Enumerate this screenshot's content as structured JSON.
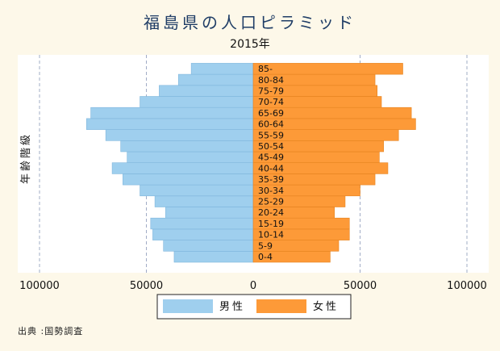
{
  "title": "福島県の人口ピラミッド",
  "subtitle": "2015年",
  "source": "出典 :国勢調査",
  "chart_data": {
    "type": "bar",
    "orientation": "horizontal",
    "title": "福島県の人口ピラミッド",
    "subtitle": "2015年",
    "ylabel": "年齢階級",
    "xlim": [
      -100000,
      100000
    ],
    "x_ticks": [
      -100000,
      -50000,
      0,
      50000,
      100000
    ],
    "x_tick_labels": [
      "100000",
      "50000",
      "0",
      "50000",
      "100000"
    ],
    "grid": true,
    "legend_position": "bottom",
    "categories": [
      "0-4",
      "5-9",
      "10-14",
      "15-19",
      "20-24",
      "25-29",
      "30-34",
      "35-39",
      "40-44",
      "45-49",
      "50-54",
      "55-59",
      "60-64",
      "65-69",
      "70-74",
      "75-79",
      "80-84",
      "85-"
    ],
    "series": [
      {
        "name": "男性",
        "color": "#9fcfee",
        "values": [
          37000,
          42000,
          47000,
          48000,
          41000,
          46000,
          53000,
          61000,
          66000,
          59000,
          62000,
          69000,
          78000,
          76000,
          53000,
          44000,
          35000,
          29000
        ]
      },
      {
        "name": "女性",
        "color": "#fd9a38",
        "values": [
          36000,
          40000,
          45000,
          45000,
          38000,
          43000,
          50000,
          57000,
          63000,
          59000,
          61000,
          68000,
          76000,
          74000,
          60000,
          58000,
          57000,
          70000
        ]
      }
    ]
  }
}
